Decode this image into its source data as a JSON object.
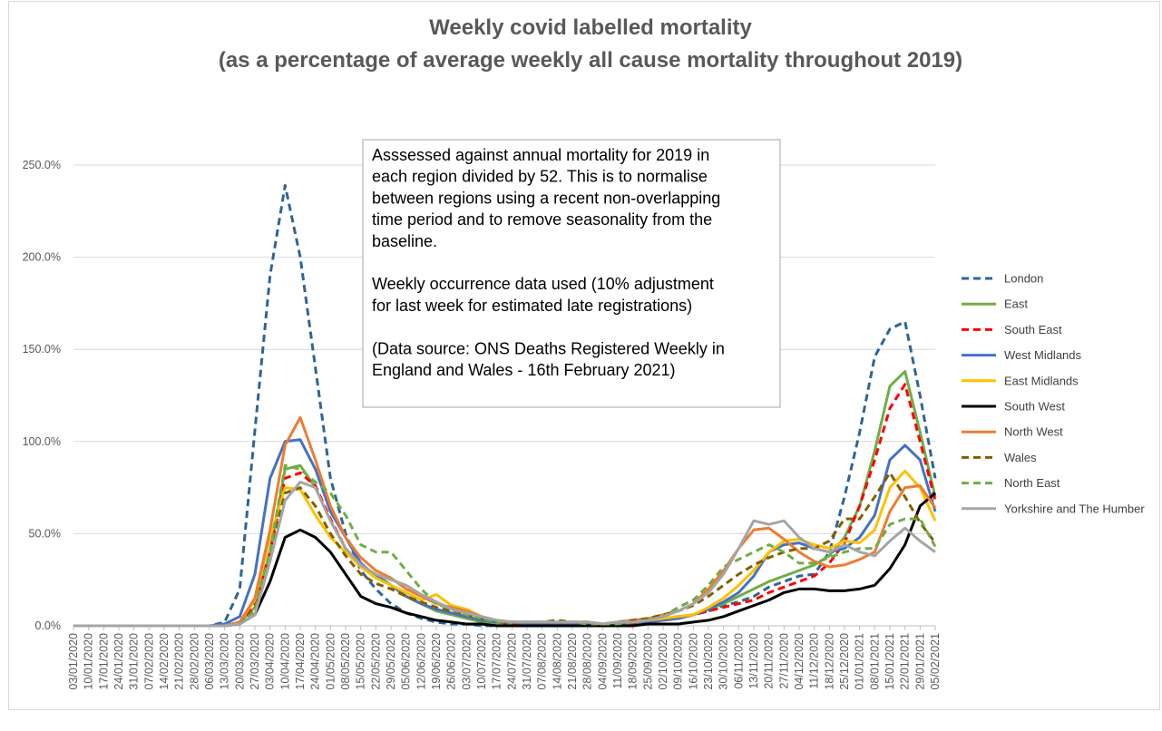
{
  "chart_data": {
    "type": "line",
    "title": "Weekly covid labelled mortality",
    "subtitle": "(as a percentage of average weekly all cause mortality throughout 2019)",
    "xlabel": "",
    "ylabel": "",
    "ylim": [
      0,
      250
    ],
    "y_unit": "%",
    "y_ticks": [
      "0.0%",
      "50.0%",
      "100.0%",
      "150.0%",
      "200.0%",
      "250.0%"
    ],
    "grid": "horizontal",
    "legend_position": "right",
    "annotation": [
      "Asssessed against annual mortality for 2019 in",
      "each region divided by 52. This is to normalise",
      "between regions using a recent non-overlapping",
      "time period and to remove seasonality from the",
      "baseline.",
      "",
      "Weekly occurrence data used (10% adjustment",
      "for last week for estimated late registrations)",
      "",
      "(Data source: ONS Deaths Registered Weekly in",
      "England and Wales  - 16th February 2021)"
    ],
    "x": [
      "03/01/2020",
      "10/01/2020",
      "17/01/2020",
      "24/01/2020",
      "31/01/2020",
      "07/02/2020",
      "14/02/2020",
      "21/02/2020",
      "28/02/2020",
      "06/03/2020",
      "13/03/2020",
      "20/03/2020",
      "27/03/2020",
      "03/04/2020",
      "10/04/2020",
      "17/04/2020",
      "24/04/2020",
      "01/05/2020",
      "08/05/2020",
      "15/05/2020",
      "22/05/2020",
      "29/05/2020",
      "05/06/2020",
      "12/06/2020",
      "19/06/2020",
      "26/06/2020",
      "03/07/2020",
      "10/07/2020",
      "17/07/2020",
      "24/07/2020",
      "31/07/2020",
      "07/08/2020",
      "14/08/2020",
      "21/08/2020",
      "28/08/2020",
      "04/09/2020",
      "11/09/2020",
      "18/09/2020",
      "25/09/2020",
      "02/10/2020",
      "09/10/2020",
      "16/10/2020",
      "23/10/2020",
      "30/10/2020",
      "06/11/2020",
      "13/11/2020",
      "20/11/2020",
      "27/11/2020",
      "04/12/2020",
      "11/12/2020",
      "18/12/2020",
      "25/12/2020",
      "01/01/2021",
      "08/01/2021",
      "15/01/2021",
      "22/01/2021",
      "29/01/2021",
      "05/02/2021"
    ],
    "x_tick_labels": [
      "03/01/2020",
      "10/01/2020",
      "17/01/2020",
      "24/01/2020",
      "31/01/2020",
      "07/02/2020",
      "14/02/2020",
      "21/02/2020",
      "28/02/2020",
      "06/03/2020",
      "13/03/2020",
      "20/03/2020",
      "27/03/2020",
      "03/04/2020",
      "10/04/2020",
      "17/04/2020",
      "24/04/2020",
      "01/05/2020",
      "08/05/2020",
      "15/05/2020",
      "22/05/2020",
      "29/05/2020",
      "05/06/2020",
      "12/06/2020",
      "19/06/2020",
      "26/06/2020",
      "03/07/2020",
      "10/07/2020",
      "17/07/2020",
      "24/07/2020",
      "31/07/2020",
      "07/08/2020",
      "14/08/2020",
      "21/08/2020",
      "28/08/2020",
      "04/09/2020",
      "11/09/2020",
      "18/09/2020",
      "25/09/2020",
      "02/10/2020",
      "09/10/2020",
      "16/10/2020",
      "23/10/2020",
      "30/10/2020",
      "06/11/2020",
      "13/11/2020",
      "20/11/2020",
      "27/11/2020",
      "04/12/2020",
      "11/12/2020",
      "18/12/2020",
      "25/12/2020",
      "01/01/2021",
      "08/01/2021",
      "15/01/2021",
      "22/01/2021",
      "29/01/2021",
      "05/02/2021"
    ],
    "series": [
      {
        "name": "London",
        "color": "#2e6596",
        "dash": "dashed",
        "values": [
          0,
          0,
          0,
          0,
          0,
          0,
          0,
          0,
          0,
          0,
          2,
          20,
          106,
          190,
          239,
          200,
          140,
          80,
          50,
          30,
          20,
          12,
          7,
          4,
          2,
          1,
          1,
          0,
          0,
          0,
          0,
          0,
          0,
          0,
          0,
          0,
          1,
          2,
          3,
          4,
          5,
          6,
          8,
          11,
          13,
          16,
          21,
          24,
          27,
          28,
          40,
          70,
          105,
          146,
          161,
          165,
          125,
          80
        ]
      },
      {
        "name": "East",
        "color": "#70ad47",
        "dash": "solid",
        "values": [
          0,
          0,
          0,
          0,
          0,
          0,
          0,
          0,
          0,
          0,
          0,
          2,
          10,
          40,
          85,
          87,
          75,
          57,
          42,
          32,
          28,
          22,
          16,
          12,
          8,
          6,
          4,
          2,
          1,
          1,
          1,
          1,
          1,
          1,
          1,
          0,
          1,
          1,
          2,
          3,
          4,
          6,
          9,
          12,
          16,
          20,
          24,
          27,
          30,
          33,
          38,
          48,
          65,
          95,
          130,
          138,
          105,
          70
        ]
      },
      {
        "name": "South East",
        "color": "#ff0000",
        "dash": "dashed",
        "values": [
          0,
          0,
          0,
          0,
          0,
          0,
          0,
          0,
          0,
          0,
          0,
          2,
          12,
          40,
          80,
          83,
          76,
          58,
          42,
          33,
          26,
          22,
          16,
          12,
          9,
          7,
          5,
          3,
          2,
          1,
          1,
          1,
          1,
          1,
          1,
          0,
          1,
          1,
          2,
          3,
          4,
          6,
          8,
          10,
          12,
          14,
          18,
          21,
          24,
          27,
          34,
          45,
          65,
          90,
          118,
          131,
          100,
          68
        ]
      },
      {
        "name": "West Midlands",
        "color": "#4472c4",
        "dash": "solid",
        "values": [
          0,
          0,
          0,
          0,
          0,
          0,
          0,
          0,
          0,
          0,
          1,
          5,
          28,
          80,
          100,
          101,
          85,
          62,
          48,
          34,
          27,
          22,
          16,
          12,
          9,
          7,
          5,
          3,
          2,
          2,
          1,
          1,
          1,
          1,
          1,
          1,
          1,
          2,
          2,
          3,
          4,
          6,
          9,
          13,
          18,
          27,
          40,
          44,
          45,
          42,
          40,
          42,
          48,
          60,
          90,
          98,
          90,
          62
        ]
      },
      {
        "name": "East Midlands",
        "color": "#ffc000",
        "dash": "solid",
        "values": [
          0,
          0,
          0,
          0,
          0,
          0,
          0,
          0,
          0,
          0,
          0,
          2,
          14,
          48,
          75,
          74,
          60,
          48,
          40,
          32,
          26,
          22,
          18,
          14,
          17,
          11,
          9,
          5,
          3,
          2,
          2,
          2,
          2,
          2,
          2,
          1,
          2,
          2,
          3,
          4,
          5,
          6,
          10,
          15,
          22,
          30,
          40,
          46,
          47,
          44,
          42,
          46,
          45,
          52,
          75,
          84,
          75,
          57
        ]
      },
      {
        "name": "South West",
        "color": "#000000",
        "dash": "solid",
        "values": [
          0,
          0,
          0,
          0,
          0,
          0,
          0,
          0,
          0,
          0,
          0,
          1,
          6,
          24,
          48,
          52,
          48,
          40,
          28,
          16,
          12,
          10,
          7,
          5,
          3,
          2,
          1,
          1,
          0,
          0,
          0,
          0,
          0,
          0,
          0,
          0,
          0,
          0,
          1,
          1,
          1,
          2,
          3,
          5,
          8,
          11,
          14,
          18,
          20,
          20,
          19,
          19,
          20,
          22,
          31,
          44,
          65,
          72
        ]
      },
      {
        "name": "North West",
        "color": "#ed7d31",
        "dash": "solid",
        "values": [
          0,
          0,
          0,
          0,
          0,
          0,
          0,
          0,
          0,
          0,
          0,
          2,
          15,
          52,
          98,
          113,
          90,
          65,
          48,
          37,
          30,
          26,
          20,
          16,
          12,
          10,
          8,
          5,
          3,
          2,
          2,
          2,
          2,
          2,
          2,
          1,
          2,
          3,
          4,
          6,
          8,
          12,
          20,
          30,
          42,
          52,
          53,
          47,
          40,
          35,
          32,
          33,
          36,
          40,
          62,
          75,
          76,
          64
        ]
      },
      {
        "name": "Wales",
        "color": "#7f6000",
        "dash": "dashed",
        "values": [
          0,
          0,
          0,
          0,
          0,
          0,
          0,
          0,
          0,
          0,
          0,
          1,
          9,
          40,
          72,
          75,
          65,
          50,
          38,
          28,
          23,
          20,
          16,
          13,
          10,
          8,
          6,
          4,
          3,
          2,
          2,
          2,
          3,
          2,
          2,
          1,
          2,
          3,
          4,
          6,
          8,
          11,
          16,
          22,
          28,
          33,
          37,
          40,
          42,
          42,
          46,
          58,
          58,
          70,
          83,
          70,
          56,
          45
        ]
      },
      {
        "name": "North East",
        "color": "#70ad47",
        "dash": "dashed",
        "values": [
          0,
          0,
          0,
          0,
          0,
          0,
          0,
          0,
          0,
          0,
          0,
          1,
          8,
          40,
          87,
          85,
          78,
          72,
          60,
          44,
          40,
          40,
          30,
          20,
          12,
          9,
          6,
          4,
          2,
          2,
          2,
          2,
          2,
          2,
          1,
          1,
          1,
          2,
          3,
          5,
          10,
          14,
          22,
          32,
          36,
          40,
          44,
          40,
          34,
          34,
          37,
          40,
          42,
          42,
          55,
          58,
          58,
          43
        ]
      },
      {
        "name": "Yorkshire and The Humber",
        "color": "#a5a5a5",
        "dash": "solid",
        "values": [
          0,
          0,
          0,
          0,
          0,
          0,
          0,
          0,
          0,
          0,
          0,
          1,
          6,
          35,
          68,
          78,
          75,
          57,
          42,
          33,
          28,
          25,
          22,
          17,
          13,
          9,
          7,
          5,
          3,
          2,
          2,
          2,
          2,
          2,
          2,
          1,
          2,
          2,
          3,
          5,
          8,
          12,
          18,
          28,
          42,
          57,
          55,
          57,
          48,
          42,
          40,
          44,
          40,
          38,
          46,
          53,
          46,
          40
        ]
      }
    ]
  }
}
